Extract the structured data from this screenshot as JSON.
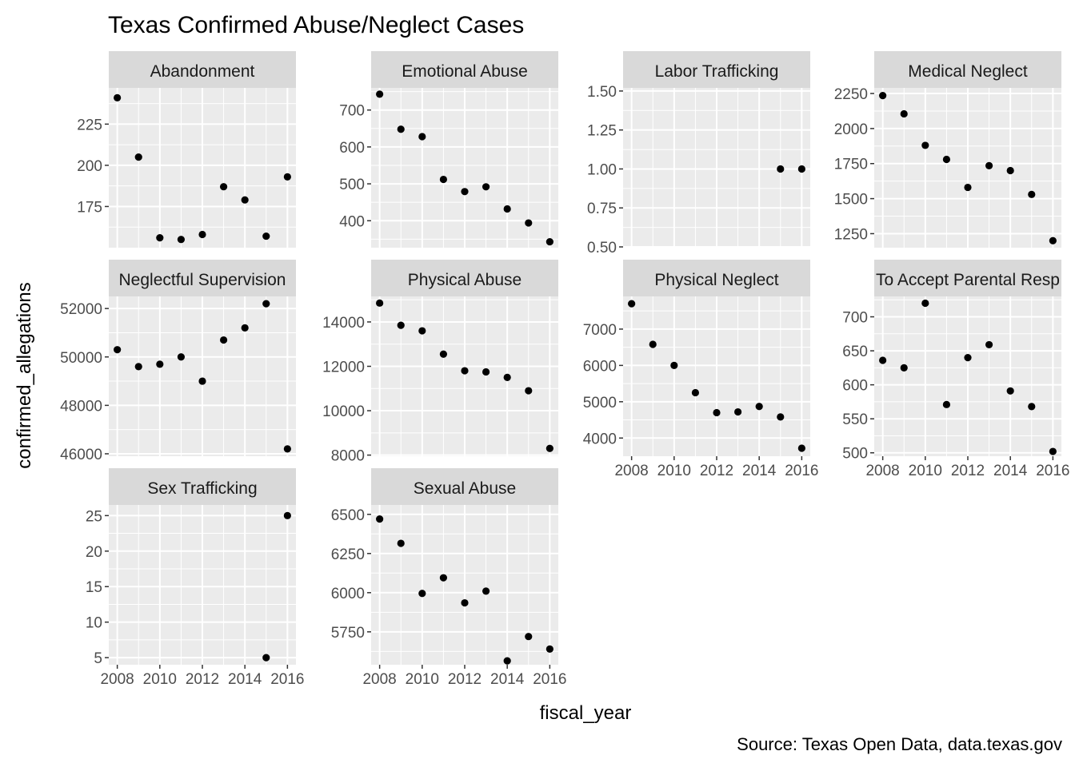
{
  "chart_data": {
    "type": "scatter",
    "title": "Texas Confirmed Abuse/Neglect Cases",
    "xlabel": "fiscal_year",
    "ylabel": "confirmed_allegations",
    "caption": "Source: Texas Open Data, data.texas.gov",
    "facet_layout": "facet_wrap, 4 columns, free y scales",
    "grid": true,
    "x_range": [
      2007.6,
      2016.4
    ],
    "x_ticks": [
      2008,
      2010,
      2012,
      2014,
      2016
    ],
    "panels": [
      {
        "label": "Abandonment",
        "ylim": [
          150,
          247
        ],
        "y_ticks": [
          175,
          200,
          225
        ],
        "points": [
          {
            "x": 2008,
            "y": 241
          },
          {
            "x": 2009,
            "y": 205
          },
          {
            "x": 2010,
            "y": 156
          },
          {
            "x": 2011,
            "y": 155
          },
          {
            "x": 2012,
            "y": 158
          },
          {
            "x": 2013,
            "y": 187
          },
          {
            "x": 2014,
            "y": 179
          },
          {
            "x": 2015,
            "y": 157
          },
          {
            "x": 2016,
            "y": 193
          }
        ]
      },
      {
        "label": "Emotional Abuse",
        "ylim": [
          327,
          760
        ],
        "y_ticks": [
          400,
          500,
          600,
          700
        ],
        "points": [
          {
            "x": 2008,
            "y": 743
          },
          {
            "x": 2009,
            "y": 648
          },
          {
            "x": 2010,
            "y": 628
          },
          {
            "x": 2011,
            "y": 512
          },
          {
            "x": 2012,
            "y": 479
          },
          {
            "x": 2013,
            "y": 492
          },
          {
            "x": 2014,
            "y": 432
          },
          {
            "x": 2015,
            "y": 394
          },
          {
            "x": 2016,
            "y": 343
          }
        ]
      },
      {
        "label": "Labor Trafficking",
        "ylim": [
          0.495,
          1.52
        ],
        "y_ticks": [
          0.5,
          0.75,
          1.0,
          1.25,
          1.5
        ],
        "y_tick_labels": [
          "0.50",
          "0.75",
          "1.00",
          "1.25",
          "1.50"
        ],
        "points": [
          {
            "x": 2015,
            "y": 1
          },
          {
            "x": 2016,
            "y": 1
          }
        ]
      },
      {
        "label": "Medical Neglect",
        "ylim": [
          1150,
          2290
        ],
        "y_ticks": [
          1250,
          1500,
          1750,
          2000,
          2250
        ],
        "points": [
          {
            "x": 2008,
            "y": 2235
          },
          {
            "x": 2009,
            "y": 2105
          },
          {
            "x": 2010,
            "y": 1880
          },
          {
            "x": 2011,
            "y": 1780
          },
          {
            "x": 2012,
            "y": 1580
          },
          {
            "x": 2013,
            "y": 1735
          },
          {
            "x": 2014,
            "y": 1700
          },
          {
            "x": 2015,
            "y": 1530
          },
          {
            "x": 2016,
            "y": 1200
          }
        ]
      },
      {
        "label": "Neglectful Supervision",
        "ylim": [
          45900,
          52500
        ],
        "y_ticks": [
          46000,
          48000,
          50000,
          52000
        ],
        "points": [
          {
            "x": 2008,
            "y": 50300
          },
          {
            "x": 2009,
            "y": 49600
          },
          {
            "x": 2010,
            "y": 49700
          },
          {
            "x": 2011,
            "y": 50000
          },
          {
            "x": 2012,
            "y": 49000
          },
          {
            "x": 2013,
            "y": 50700
          },
          {
            "x": 2014,
            "y": 51200
          },
          {
            "x": 2015,
            "y": 52200
          },
          {
            "x": 2016,
            "y": 46200
          }
        ]
      },
      {
        "label": "Physical Abuse",
        "ylim": [
          7950,
          15150
        ],
        "y_ticks": [
          8000,
          10000,
          12000,
          14000
        ],
        "points": [
          {
            "x": 2008,
            "y": 14850
          },
          {
            "x": 2009,
            "y": 13850
          },
          {
            "x": 2010,
            "y": 13600
          },
          {
            "x": 2011,
            "y": 12550
          },
          {
            "x": 2012,
            "y": 11800
          },
          {
            "x": 2013,
            "y": 11750
          },
          {
            "x": 2014,
            "y": 11500
          },
          {
            "x": 2015,
            "y": 10900
          },
          {
            "x": 2016,
            "y": 8300
          }
        ]
      },
      {
        "label": "Physical Neglect",
        "ylim": [
          3500,
          7900
        ],
        "y_ticks": [
          4000,
          5000,
          6000,
          7000
        ],
        "points": [
          {
            "x": 2008,
            "y": 7700
          },
          {
            "x": 2009,
            "y": 6580
          },
          {
            "x": 2010,
            "y": 6000
          },
          {
            "x": 2011,
            "y": 5250
          },
          {
            "x": 2012,
            "y": 4700
          },
          {
            "x": 2013,
            "y": 4720
          },
          {
            "x": 2014,
            "y": 4870
          },
          {
            "x": 2015,
            "y": 4580
          },
          {
            "x": 2016,
            "y": 3720
          }
        ]
      },
      {
        "label": "To Accept Parental Resp",
        "ylim": [
          495,
          730
        ],
        "y_ticks": [
          500,
          550,
          600,
          650,
          700
        ],
        "points": [
          {
            "x": 2008,
            "y": 636
          },
          {
            "x": 2009,
            "y": 625
          },
          {
            "x": 2010,
            "y": 720
          },
          {
            "x": 2011,
            "y": 571
          },
          {
            "x": 2012,
            "y": 640
          },
          {
            "x": 2013,
            "y": 659
          },
          {
            "x": 2014,
            "y": 591
          },
          {
            "x": 2015,
            "y": 568
          },
          {
            "x": 2016,
            "y": 502
          }
        ]
      },
      {
        "label": "Sex Trafficking",
        "ylim": [
          4,
          26.5
        ],
        "y_ticks": [
          5,
          10,
          15,
          20,
          25
        ],
        "points": [
          {
            "x": 2015,
            "y": 5
          },
          {
            "x": 2016,
            "y": 25
          }
        ]
      },
      {
        "label": "Sexual Abuse",
        "ylim": [
          5540,
          6560
        ],
        "y_ticks": [
          5750,
          6000,
          6250,
          6500
        ],
        "points": [
          {
            "x": 2008,
            "y": 6470
          },
          {
            "x": 2009,
            "y": 6315
          },
          {
            "x": 2010,
            "y": 5995
          },
          {
            "x": 2011,
            "y": 6095
          },
          {
            "x": 2012,
            "y": 5935
          },
          {
            "x": 2013,
            "y": 6010
          },
          {
            "x": 2014,
            "y": 5565
          },
          {
            "x": 2015,
            "y": 5720
          },
          {
            "x": 2016,
            "y": 5640
          }
        ]
      }
    ]
  }
}
